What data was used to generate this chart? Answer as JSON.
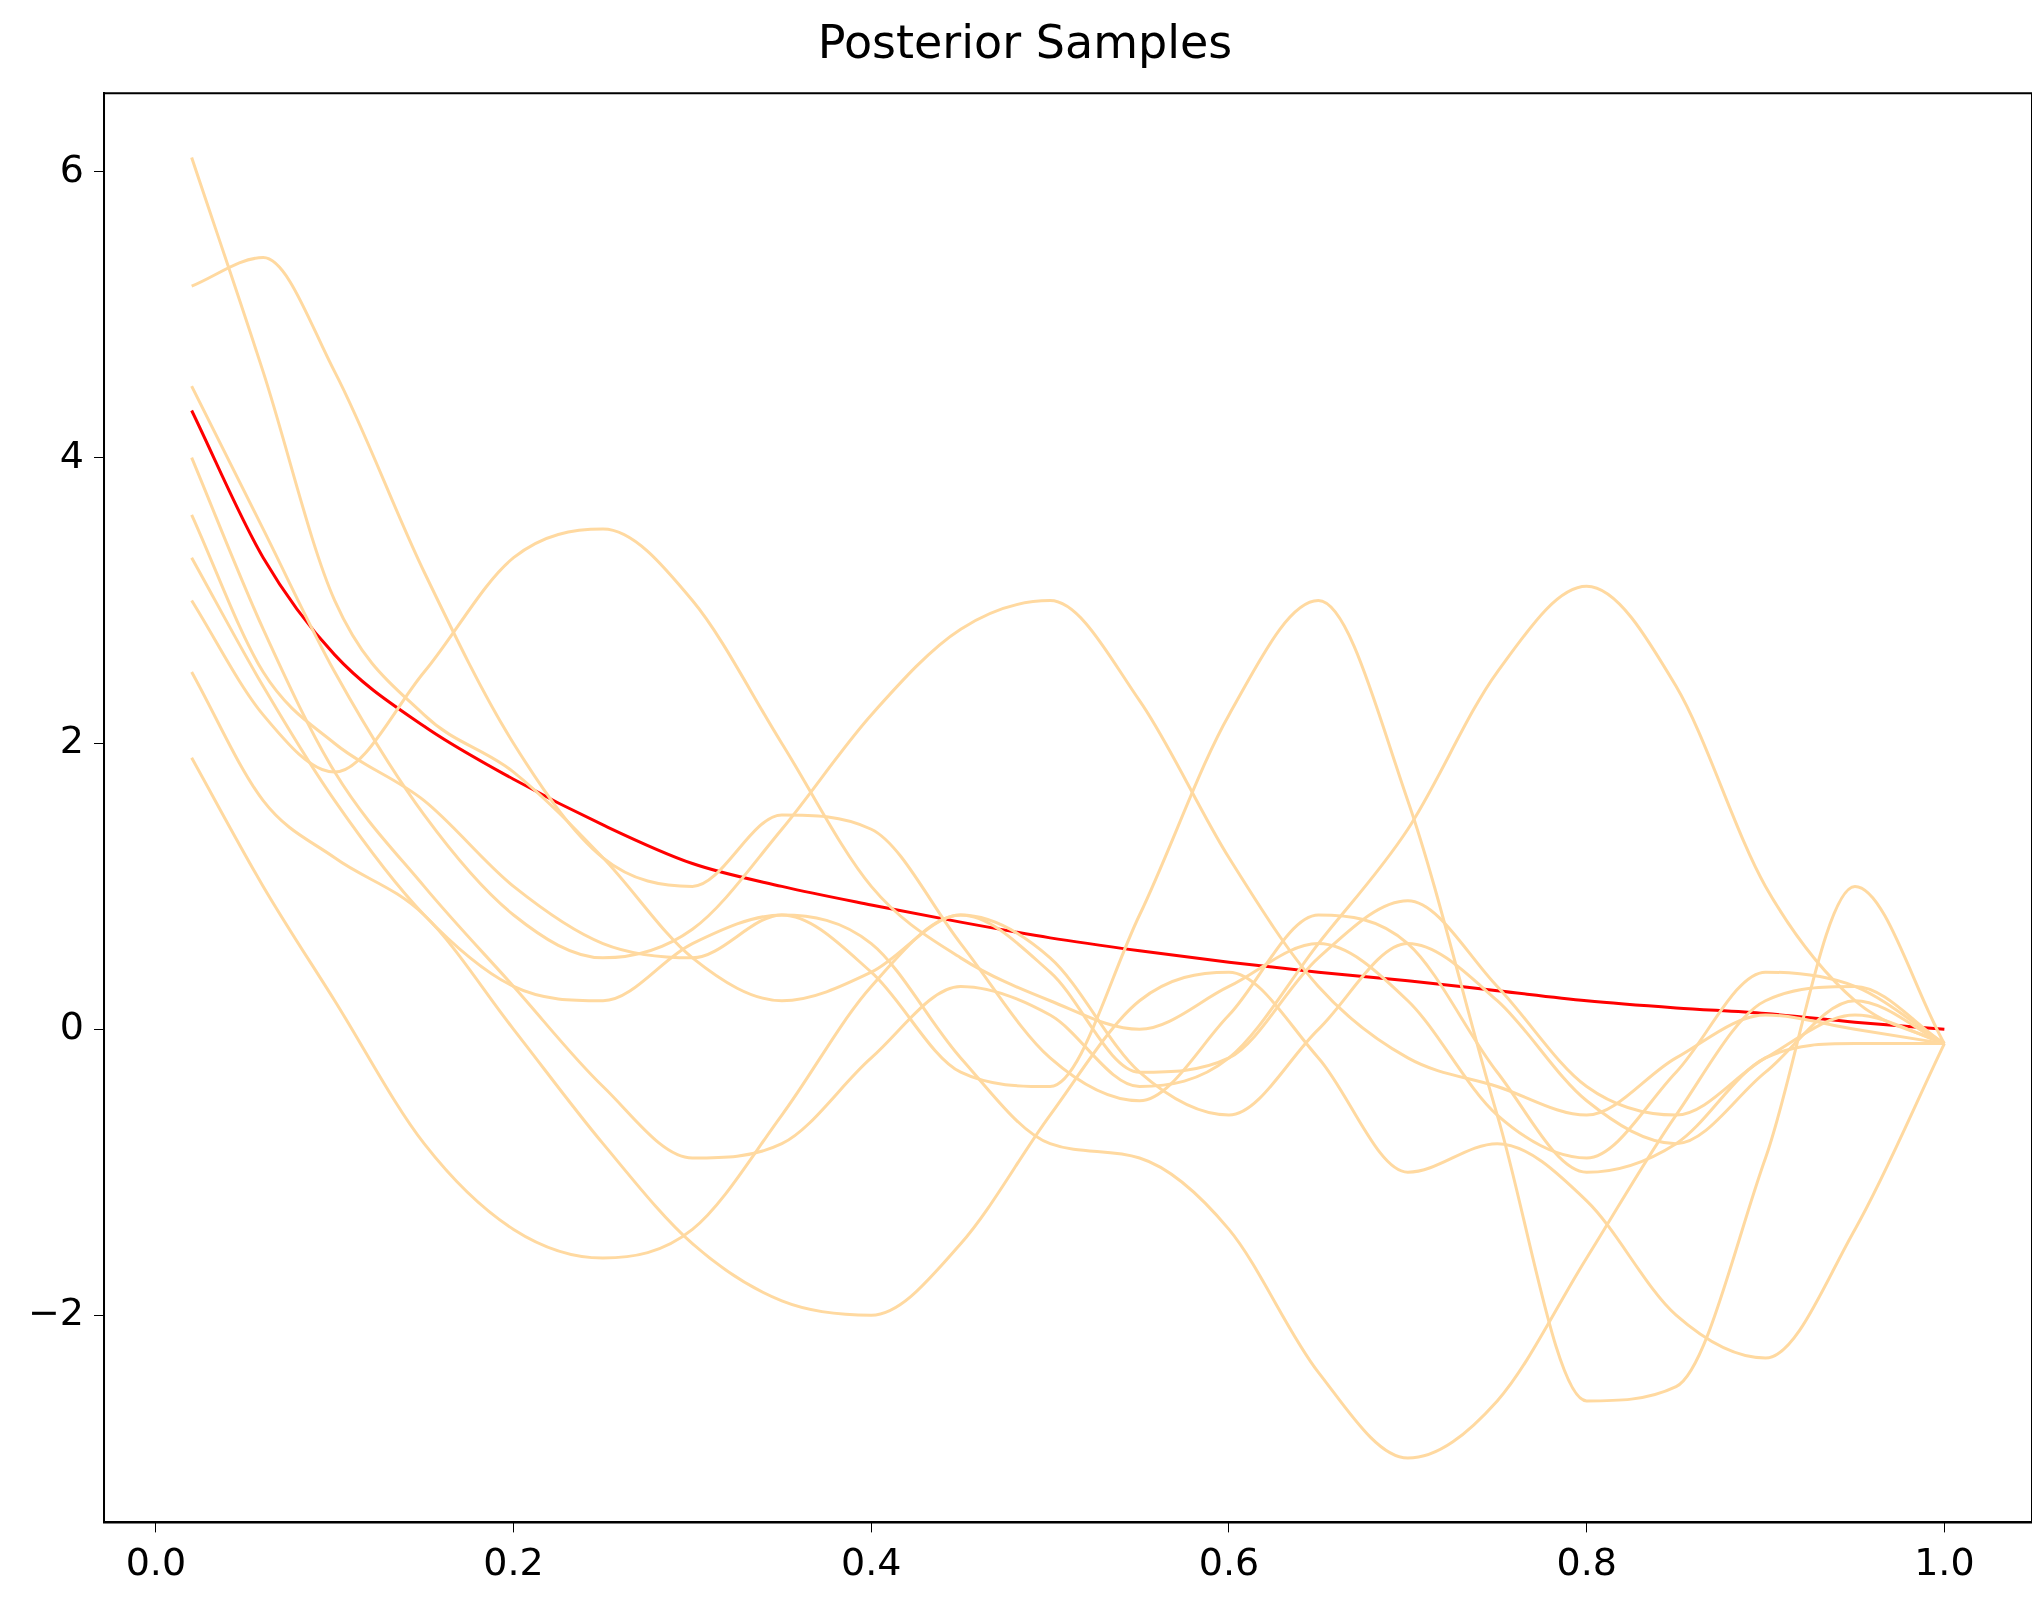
{
  "chart_data": {
    "type": "line",
    "title": "Posterior Samples",
    "x": [
      0.02,
      0.06,
      0.1,
      0.15,
      0.2,
      0.25,
      0.3,
      0.35,
      0.4,
      0.45,
      0.5,
      0.55,
      0.6,
      0.65,
      0.7,
      0.75,
      0.8,
      0.85,
      0.9,
      0.95,
      1.0
    ],
    "series": [
      {
        "color": "#ffd9a0",
        "values": [
          6.1,
          4.6,
          3.0,
          2.2,
          1.8,
          1.2,
          0.5,
          0.2,
          0.4,
          0.8,
          0.5,
          -0.3,
          -0.6,
          0.0,
          0.6,
          0.2,
          -0.5,
          -0.8,
          -0.3,
          0.2,
          -0.1
        ]
      },
      {
        "color": "#ffd9a0",
        "values": [
          5.2,
          5.4,
          4.6,
          3.2,
          2.0,
          1.2,
          1.0,
          1.5,
          1.4,
          0.6,
          -0.2,
          -0.5,
          0.1,
          0.8,
          0.6,
          -0.3,
          -1.0,
          -0.8,
          -0.2,
          -0.1,
          -0.1
        ]
      },
      {
        "color": "#ffd9a0",
        "values": [
          1.9,
          1.0,
          0.2,
          -0.8,
          -1.4,
          -1.6,
          -1.4,
          -0.6,
          0.3,
          0.8,
          0.4,
          -0.3,
          -0.2,
          0.5,
          0.9,
          0.3,
          -0.4,
          -0.6,
          -0.2,
          0.1,
          -0.1
        ]
      },
      {
        "color": "#ffd9a0",
        "values": [
          3.0,
          2.2,
          1.8,
          2.5,
          3.3,
          3.5,
          3.0,
          2.0,
          1.0,
          0.5,
          0.2,
          0.0,
          0.3,
          0.6,
          0.2,
          -0.6,
          -0.9,
          -0.3,
          0.4,
          0.3,
          -0.1
        ]
      },
      {
        "color": "#ffd9a0",
        "values": [
          3.6,
          2.5,
          2.0,
          1.6,
          1.0,
          0.6,
          0.5,
          0.8,
          0.6,
          -0.2,
          -0.8,
          -0.9,
          -1.4,
          -2.4,
          -3.0,
          -2.6,
          -1.6,
          -0.6,
          0.2,
          0.3,
          -0.1
        ]
      },
      {
        "color": "#ffd9a0",
        "values": [
          4.0,
          2.8,
          1.8,
          1.0,
          0.3,
          -0.4,
          -0.9,
          -0.8,
          -0.2,
          0.3,
          0.1,
          -0.4,
          -0.2,
          0.6,
          1.4,
          2.5,
          3.1,
          2.4,
          1.0,
          0.2,
          -0.1
        ]
      },
      {
        "color": "#ffd9a0",
        "values": [
          4.5,
          3.5,
          2.5,
          1.5,
          0.8,
          0.5,
          0.7,
          1.4,
          2.2,
          2.8,
          3.0,
          2.3,
          1.2,
          0.3,
          -0.2,
          -0.4,
          -0.6,
          -0.2,
          0.1,
          0.0,
          -0.1
        ]
      },
      {
        "color": "#ffd9a0",
        "values": [
          3.3,
          2.4,
          1.6,
          0.8,
          0.3,
          0.2,
          0.6,
          0.8,
          0.4,
          -0.3,
          -0.4,
          0.8,
          2.2,
          3.0,
          1.6,
          -0.6,
          -2.6,
          -2.5,
          -0.9,
          1.0,
          -0.1
        ]
      },
      {
        "color": "#ffd9a0",
        "values": [
          2.5,
          1.6,
          1.2,
          0.8,
          0.0,
          -0.8,
          -1.5,
          -1.9,
          -2.0,
          -1.5,
          -0.6,
          0.2,
          0.4,
          -0.2,
          -1.0,
          -0.8,
          -1.2,
          -2.0,
          -2.3,
          -1.4,
          -0.1
        ]
      },
      {
        "color": "#ff0000",
        "values": [
          4.33,
          3.3,
          2.62,
          2.12,
          1.75,
          1.43,
          1.16,
          1.0,
          0.87,
          0.75,
          0.64,
          0.55,
          0.47,
          0.4,
          0.34,
          0.27,
          0.2,
          0.15,
          0.11,
          0.05,
          0.0
        ]
      }
    ],
    "xlim": [
      -0.029,
      1.049
    ],
    "ylim": [
      -3.45,
      6.55
    ],
    "xticks": [
      {
        "value": 0,
        "label": "0.0"
      },
      0.2,
      0.4,
      0.6,
      0.8,
      {
        "value": 1,
        "label": "1.0"
      }
    ],
    "yticks": [
      {
        "value": -2,
        "label": "−2"
      },
      0,
      2,
      4,
      6
    ],
    "grid": false,
    "legend": false
  }
}
